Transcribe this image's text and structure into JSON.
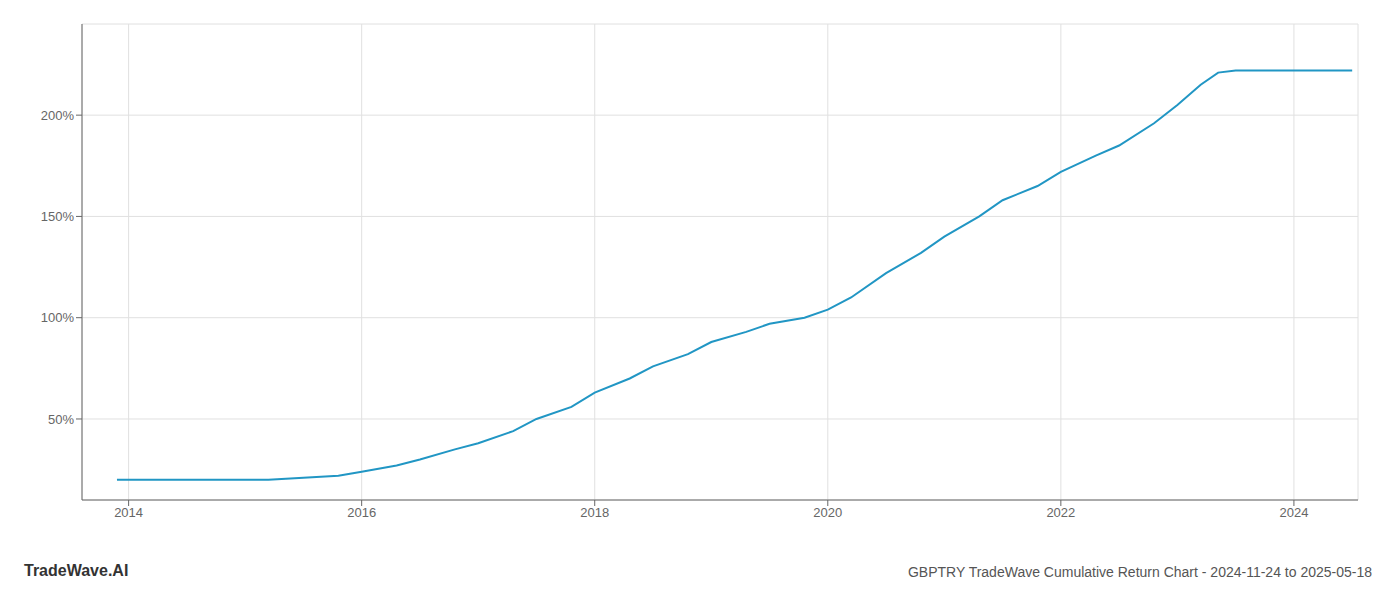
{
  "chart_data": {
    "type": "line",
    "title": "GBPTRY TradeWave Cumulative Return Chart - 2024-11-24 to 2025-05-18",
    "annotations": [
      "TradeWave.AI"
    ],
    "x": [
      2013.9,
      2014.0,
      2014.2,
      2014.5,
      2014.8,
      2015.0,
      2015.2,
      2015.5,
      2015.8,
      2016.0,
      2016.3,
      2016.5,
      2016.8,
      2017.0,
      2017.3,
      2017.5,
      2017.8,
      2018.0,
      2018.3,
      2018.5,
      2018.8,
      2019.0,
      2019.3,
      2019.5,
      2019.8,
      2020.0,
      2020.2,
      2020.5,
      2020.8,
      2021.0,
      2021.3,
      2021.5,
      2021.8,
      2022.0,
      2022.3,
      2022.5,
      2022.8,
      2023.0,
      2023.2,
      2023.35,
      2023.5,
      2023.7,
      2023.9,
      2024.0,
      2024.2,
      2024.5
    ],
    "values": [
      20,
      20,
      20,
      20,
      20,
      20,
      20,
      21,
      22,
      24,
      27,
      30,
      35,
      38,
      44,
      50,
      56,
      63,
      70,
      76,
      82,
      88,
      93,
      97,
      100,
      104,
      110,
      122,
      132,
      140,
      150,
      158,
      165,
      172,
      180,
      185,
      196,
      205,
      215,
      221,
      222,
      222,
      222,
      222,
      222,
      222
    ],
    "color": "#2196c4",
    "xlim": [
      2013.6,
      2024.55
    ],
    "xticks": [
      2014,
      2016,
      2018,
      2020,
      2022,
      2024
    ],
    "ylim": [
      10,
      245
    ],
    "yticks": [
      {
        "value": 50,
        "label": "50%"
      },
      {
        "value": 100,
        "label": "100%"
      },
      {
        "value": 150,
        "label": "150%"
      },
      {
        "value": 200,
        "label": "200%"
      }
    ],
    "grid": true
  }
}
